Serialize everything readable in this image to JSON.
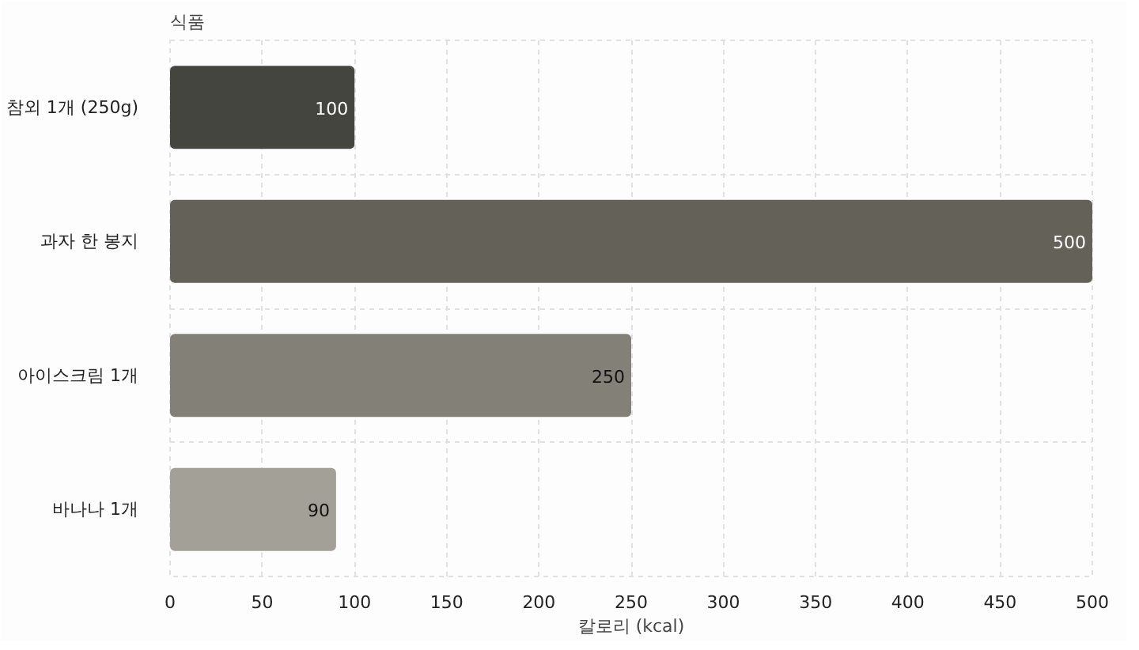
{
  "chart_data": {
    "type": "bar",
    "orientation": "horizontal",
    "ylabel": "식품",
    "xlabel": "칼로리 (kcal)",
    "categories": [
      "참외 1개 (250g)",
      "과자 한 봉지",
      "아이스크림 1개",
      "바나나 1개"
    ],
    "values": [
      100,
      500,
      250,
      90
    ],
    "colors": [
      "#45453f",
      "#636158",
      "#838177",
      "#a3a197"
    ],
    "xlim": [
      0,
      500
    ],
    "xticks": [
      0,
      50,
      100,
      150,
      200,
      250,
      300,
      350,
      400,
      450,
      500
    ],
    "grid": true,
    "data_labels": true
  }
}
